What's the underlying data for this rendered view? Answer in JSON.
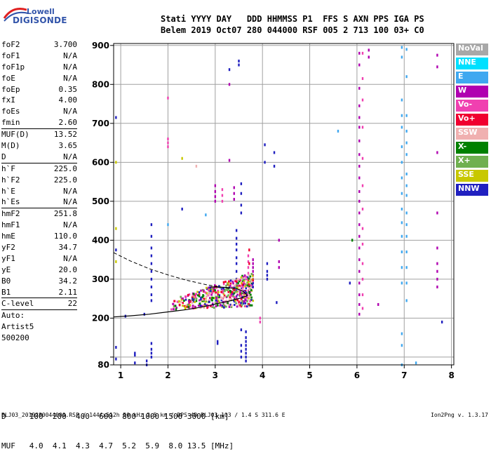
{
  "logo": {
    "line1": "Lowell",
    "line2": "DIGISONDE"
  },
  "header": {
    "line1": "Stati YYYY DAY   DDD HHMMSS P1  FFS S AXN PPS IGA PS",
    "line2": "Belem 2019 Oct07 280 044000 RSF 005 2 713 100 03+ C0"
  },
  "params": [
    {
      "label": "foF2",
      "value": "3.700"
    },
    {
      "label": "foF1",
      "value": "N/A"
    },
    {
      "label": "foF1p",
      "value": "N/A"
    },
    {
      "label": "foE",
      "value": "N/A"
    },
    {
      "label": "foEp",
      "value": "0.35"
    },
    {
      "label": "fxI",
      "value": "4.00"
    },
    {
      "label": "foEs",
      "value": "N/A"
    },
    {
      "label": "fmin",
      "value": "2.60"
    },
    {
      "label": "MUF(D)",
      "value": "13.52",
      "sep": true
    },
    {
      "label": "M(D)",
      "value": "3.65"
    },
    {
      "label": "D",
      "value": "N/A"
    },
    {
      "label": "h`F",
      "value": "225.0",
      "sep": true
    },
    {
      "label": "h`F2",
      "value": "225.0"
    },
    {
      "label": "h`E",
      "value": "N/A"
    },
    {
      "label": "h`Es",
      "value": "N/A"
    },
    {
      "label": "hmF2",
      "value": "251.8",
      "sep": true
    },
    {
      "label": "hmF1",
      "value": "N/A"
    },
    {
      "label": "hmE",
      "value": "110.0"
    },
    {
      "label": "yF2",
      "value": "34.7"
    },
    {
      "label": "yF1",
      "value": "N/A"
    },
    {
      "label": "yE",
      "value": "20.0"
    },
    {
      "label": "B0",
      "value": "34.2"
    },
    {
      "label": "B1",
      "value": "2.11"
    },
    {
      "label": "C-level",
      "value": "22",
      "sep": true
    },
    {
      "label": "Auto:",
      "value": "",
      "sep": true
    },
    {
      "label": "Artist5",
      "value": ""
    },
    {
      "label": "500200",
      "value": ""
    }
  ],
  "legend": [
    {
      "label": "NoVal",
      "color": "#a8a8a8"
    },
    {
      "label": "NNE",
      "color": "#00e0ff"
    },
    {
      "label": "E",
      "color": "#40a8f0"
    },
    {
      "label": "W",
      "color": "#b000b0"
    },
    {
      "label": "Vo-",
      "color": "#f040b0"
    },
    {
      "label": "Vo+",
      "color": "#f00030"
    },
    {
      "label": "SSW",
      "color": "#f0b0b0"
    },
    {
      "label": "X-",
      "color": "#008000"
    },
    {
      "label": "X+",
      "color": "#70b050"
    },
    {
      "label": "SSE",
      "color": "#c8c800"
    },
    {
      "label": "NNW",
      "color": "#2020c0"
    }
  ],
  "dtable": {
    "row1": "D     100  200  400  600  800 1000 1500 3000 [km]",
    "row2": "MUF   4.0  4.1  4.3  4.7  5.2  5.9  8.0 13.5 [MHz]"
  },
  "footer": {
    "left": "BLJ03_2019280044000.RSF / 144fx512h 50 kHz 2.5 km / DPS-4D BLJ03 103 / 1.4 S 311.6 E",
    "right": "Ion2Png v. 1.3.17"
  },
  "chart_data": {
    "type": "scatter",
    "xlim": [
      0.85,
      8.05
    ],
    "ylim": [
      80,
      905
    ],
    "x_ticks": [
      1,
      2,
      3,
      4,
      5,
      6,
      7,
      8
    ],
    "y_ticks": [
      80,
      100,
      200,
      300,
      400,
      500,
      600,
      700,
      800,
      900
    ],
    "y_tick_labels": [
      "80",
      "",
      "200",
      "300",
      "400",
      "500",
      "600",
      "700",
      "800",
      "900"
    ],
    "grid": true,
    "xlabel": "",
    "ylabel": "",
    "profile_solid": [
      [
        0.85,
        203
      ],
      [
        1.2,
        206
      ],
      [
        1.6,
        210
      ],
      [
        2.0,
        216
      ],
      [
        2.4,
        222
      ],
      [
        2.7,
        228
      ],
      [
        3.0,
        236
      ],
      [
        3.3,
        244
      ],
      [
        3.55,
        252
      ],
      [
        3.68,
        258
      ],
      [
        3.6,
        268
      ],
      [
        3.45,
        276
      ],
      [
        3.2,
        279
      ],
      [
        3.0,
        280
      ],
      [
        2.9,
        280
      ]
    ],
    "profile_dashed": [
      [
        0.85,
        368
      ],
      [
        1.2,
        347
      ],
      [
        1.6,
        327
      ],
      [
        2.0,
        311
      ],
      [
        2.4,
        297
      ],
      [
        2.8,
        286
      ],
      [
        3.1,
        280
      ],
      [
        3.3,
        276
      ]
    ],
    "traces": [
      {
        "color": "#b000b0",
        "x": 6.05,
        "y": [
          210,
          235,
          260,
          290,
          320,
          350,
          380,
          410,
          440,
          470,
          500,
          525,
          560,
          590,
          620,
          655,
          690,
          715,
          745,
          790,
          850,
          880
        ]
      },
      {
        "color": "#f040b0",
        "x": 6.12,
        "y": [
          225,
          260,
          300,
          340,
          390,
          430,
          480,
          540,
          610,
          690,
          760,
          815,
          880
        ]
      },
      {
        "color": "#40a8f0",
        "x": 6.95,
        "y": [
          80,
          130,
          160,
          290,
          330,
          370,
          410,
          445,
          480,
          520,
          560,
          600,
          640,
          690,
          720,
          760,
          870,
          895
        ]
      },
      {
        "color": "#40a8f0",
        "x": 7.05,
        "y": [
          245,
          290,
          330,
          370,
          410,
          440,
          470,
          515,
          540,
          570,
          620,
          650,
          680,
          720,
          820,
          890
        ]
      },
      {
        "color": "#b000b0",
        "x": 7.7,
        "y": [
          280,
          300,
          320,
          340,
          380,
          470,
          625,
          845,
          875
        ]
      },
      {
        "color": "#b000b0",
        "x": 6.25,
        "y": [
          888,
          870
        ]
      },
      {
        "color": "#2020c0",
        "x": 3.65,
        "y": [
          90,
          100,
          110,
          120,
          130,
          140,
          150,
          165
        ]
      },
      {
        "color": "#2020c0",
        "x": 3.55,
        "y": [
          100,
          115,
          130,
          170
        ]
      },
      {
        "color": "#2020c0",
        "x": 1.65,
        "y": [
          100,
          110,
          120,
          135,
          245,
          260,
          280,
          300,
          320,
          340,
          360,
          380,
          410,
          440
        ]
      },
      {
        "color": "#2020c0",
        "x": 3.05,
        "y": [
          135,
          140
        ]
      },
      {
        "color": "#b000b0",
        "x": 3.8,
        "y": [
          280,
          290,
          300,
          310,
          320,
          330,
          340,
          350
        ]
      },
      {
        "color": "#f040b0",
        "x": 3.7,
        "y": [
          270,
          285,
          300,
          315,
          330,
          345,
          360
        ]
      },
      {
        "color": "#f00030",
        "x": 3.72,
        "y": [
          300,
          340,
          375
        ]
      },
      {
        "color": "#2020c0",
        "x": 3.45,
        "y": [
          255,
          270,
          285,
          300,
          320,
          340,
          355,
          375,
          390,
          405,
          425
        ]
      },
      {
        "color": "#b000b0",
        "x": 3.0,
        "y": [
          500,
          512,
          525,
          540
        ]
      },
      {
        "color": "#f040b0",
        "x": 3.15,
        "y": [
          500,
          515,
          530
        ]
      },
      {
        "color": "#b000b0",
        "x": 3.4,
        "y": [
          505,
          520,
          535
        ]
      },
      {
        "color": "#2020c0",
        "x": 3.55,
        "y": [
          470,
          490,
          520,
          545
        ]
      },
      {
        "color": "#f040b0",
        "x": 2.0,
        "y": [
          640,
          650,
          660,
          765
        ]
      },
      {
        "color": "#b000b0",
        "x": 3.3,
        "y": [
          605,
          800
        ]
      },
      {
        "color": "#2020c0",
        "x": 3.5,
        "y": [
          850,
          860
        ]
      },
      {
        "color": "#2020c0",
        "x": 4.05,
        "y": [
          600,
          645
        ]
      },
      {
        "color": "#2020c0",
        "x": 4.25,
        "y": [
          590,
          625
        ]
      },
      {
        "color": "#40a8f0",
        "x": 5.6,
        "y": [
          680
        ]
      },
      {
        "color": "#2020c0",
        "x": 0.9,
        "y": [
          95,
          125,
          375,
          715
        ]
      },
      {
        "color": "#c8c800",
        "x": 0.9,
        "y": [
          345,
          430,
          600
        ]
      },
      {
        "color": "#2020c0",
        "x": 4.1,
        "y": [
          300,
          310,
          320,
          340
        ]
      },
      {
        "color": "#b000b0",
        "x": 4.35,
        "y": [
          330,
          345,
          400
        ]
      },
      {
        "color": "#2020c0",
        "x": 4.3,
        "y": [
          240
        ]
      },
      {
        "color": "#f040b0",
        "x": 3.95,
        "y": [
          190,
          200
        ]
      },
      {
        "color": "#2020c0",
        "x": 5.85,
        "y": [
          290
        ]
      },
      {
        "color": "#008000",
        "x": 5.9,
        "y": [
          400
        ]
      },
      {
        "color": "#b000b0",
        "x": 6.45,
        "y": [
          235
        ]
      },
      {
        "color": "#2020c0",
        "x": 7.8,
        "y": [
          190
        ]
      },
      {
        "color": "#40a8f0",
        "x": 7.25,
        "y": [
          85
        ]
      },
      {
        "color": "#2020c0",
        "x": 1.3,
        "y": [
          85,
          105,
          110
        ]
      },
      {
        "color": "#2020c0",
        "x": 1.55,
        "y": [
          80,
          90
        ]
      },
      {
        "color": "#2020c0",
        "x": 1.1,
        "y": [
          205
        ]
      },
      {
        "color": "#2020c0",
        "x": 1.5,
        "y": [
          210
        ]
      },
      {
        "color": "#2020c0",
        "x": 2.3,
        "y": [
          480
        ]
      },
      {
        "color": "#40a8f0",
        "x": 2.8,
        "y": [
          465
        ]
      },
      {
        "color": "#c8c800",
        "x": 2.3,
        "y": [
          610
        ]
      },
      {
        "color": "#f0b0b0",
        "x": 2.6,
        "y": [
          590
        ]
      },
      {
        "color": "#2020c0",
        "x": 3.3,
        "y": [
          838
        ]
      },
      {
        "color": "#40a8f0",
        "x": 2.0,
        "y": [
          440
        ]
      }
    ],
    "cluster": {
      "x_range": [
        2.05,
        3.8
      ],
      "y_range": [
        222,
        318
      ],
      "colors": [
        "#f040b0",
        "#b000b0",
        "#f00030",
        "#008000",
        "#70b050",
        "#2020c0",
        "#c8c800",
        "#f0b0b0"
      ]
    }
  }
}
